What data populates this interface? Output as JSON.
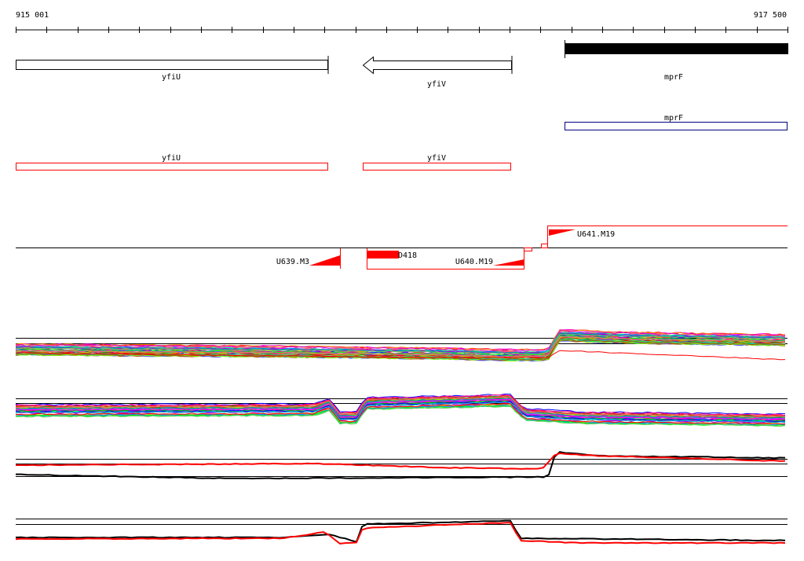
{
  "ruler": {
    "start_label": "915 001",
    "end_label": "917 500"
  },
  "genes": {
    "top": [
      {
        "label": "yfiU"
      },
      {
        "label": "yfiV"
      },
      {
        "label": "mprF"
      }
    ],
    "mid": [
      {
        "label": "mprF"
      }
    ],
    "red": [
      {
        "label": "yfiU"
      },
      {
        "label": "yfiV"
      }
    ]
  },
  "features": [
    {
      "label": "U641.M19"
    },
    {
      "label": "U639.M3"
    },
    {
      "label": "D418"
    },
    {
      "label": "U640.M19"
    }
  ],
  "colors": {
    "feature_red": "#ff0000",
    "outline_blue": "#000080",
    "black": "#000000"
  }
}
